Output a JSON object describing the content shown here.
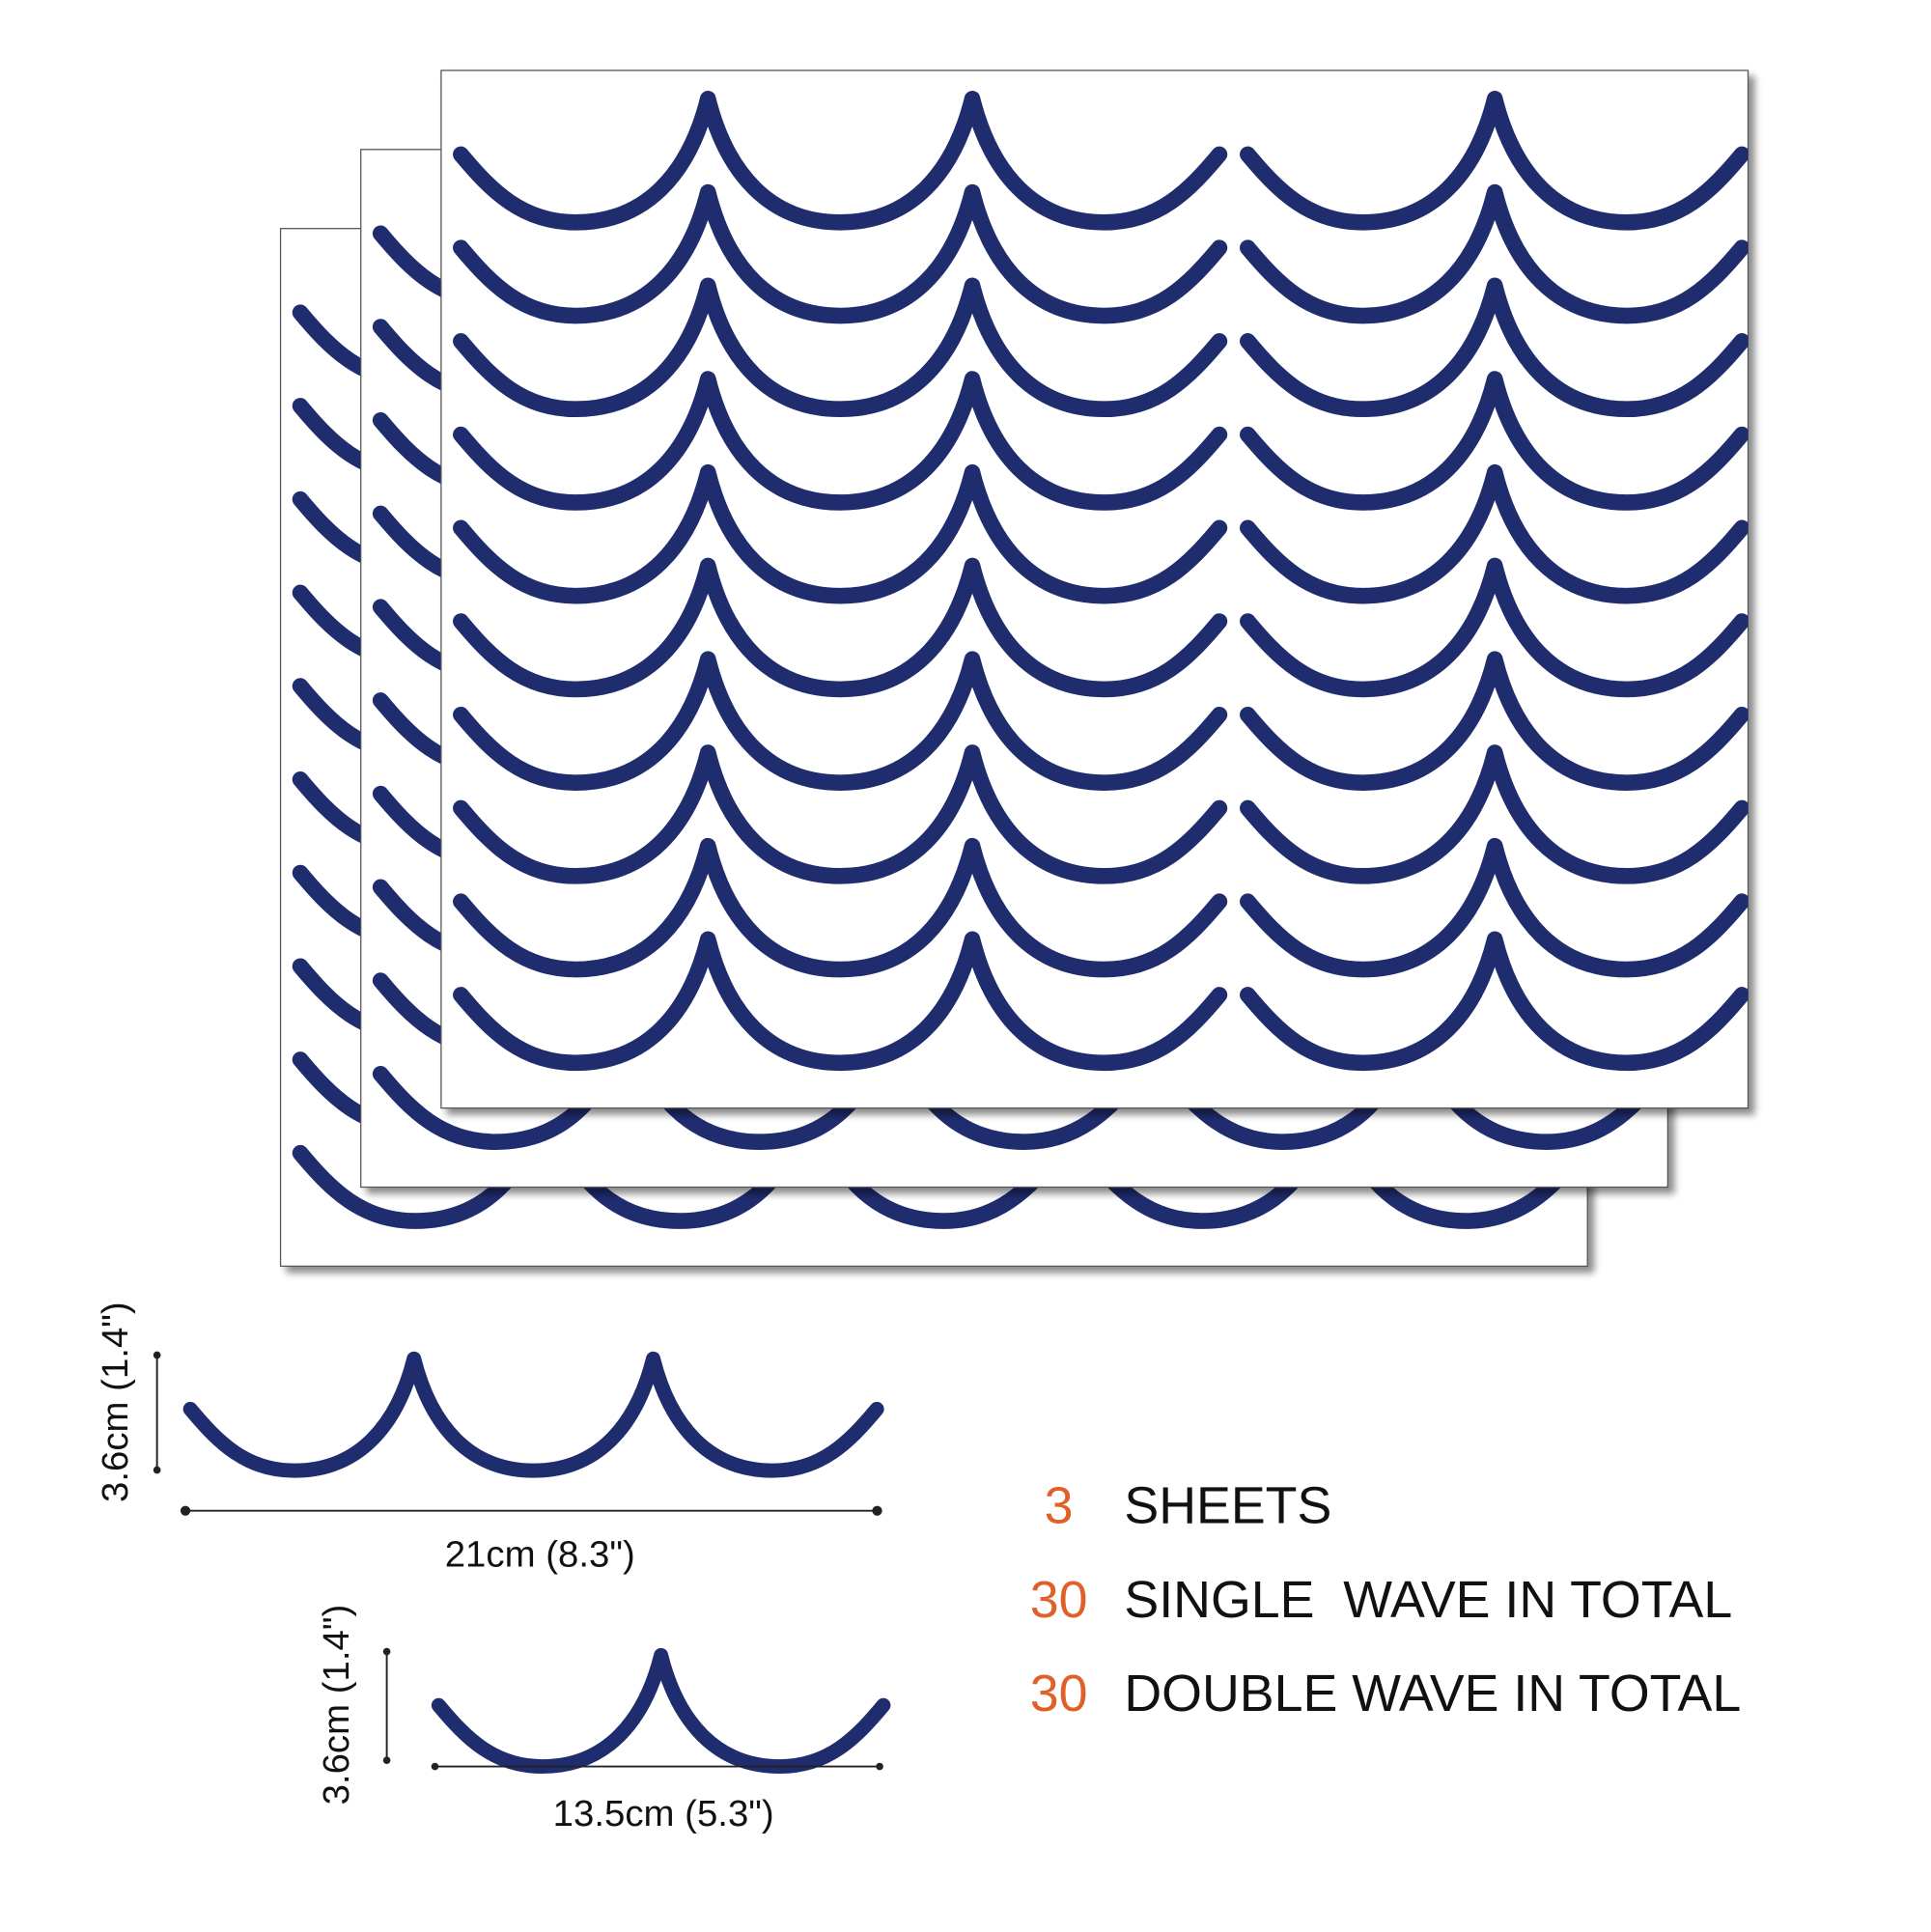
{
  "specs": [
    {
      "count": 3,
      "label": "SHEETS"
    },
    {
      "count": 30,
      "label": "SINGLE  WAVE IN TOTAL"
    },
    {
      "count": 30,
      "label": "DOUBLE WAVE IN TOTAL"
    }
  ],
  "double_wave": {
    "height": "3.6cm (1.4\")",
    "width": "21cm (8.3\")"
  },
  "single_wave": {
    "height": "3.6cm (1.4\")",
    "width": "13.5cm (5.3\")"
  }
}
